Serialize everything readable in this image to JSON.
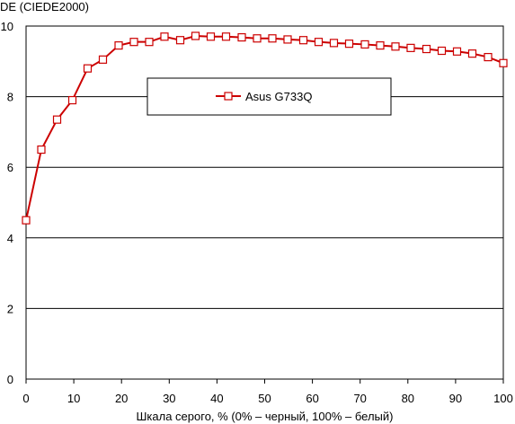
{
  "chart_data": {
    "type": "line",
    "ylabel": "DE (CIEDE2000)",
    "xlabel": "Шкала серого, % (0% – черный, 100% – белый)",
    "xlim": [
      0,
      100
    ],
    "ylim": [
      0,
      10
    ],
    "xticks": [
      0,
      10,
      20,
      30,
      40,
      50,
      60,
      70,
      80,
      90,
      100
    ],
    "yticks": [
      0,
      2,
      4,
      6,
      8,
      10
    ],
    "grid": "horizontal",
    "legend_position": "top-center",
    "series": [
      {
        "name": "Asus G733Q",
        "color": "#cc0000",
        "marker": "square-open",
        "x": [
          0,
          3.2,
          6.5,
          9.7,
          12.9,
          16.1,
          19.4,
          22.6,
          25.8,
          29.0,
          32.3,
          35.5,
          38.7,
          41.9,
          45.2,
          48.4,
          51.6,
          54.8,
          58.1,
          61.3,
          64.5,
          67.7,
          71.0,
          74.2,
          77.4,
          80.6,
          83.9,
          87.1,
          90.3,
          93.5,
          96.8,
          100
        ],
        "values": [
          4.5,
          6.5,
          7.35,
          7.9,
          8.8,
          9.05,
          9.45,
          9.55,
          9.55,
          9.7,
          9.6,
          9.72,
          9.7,
          9.7,
          9.68,
          9.65,
          9.65,
          9.62,
          9.6,
          9.55,
          9.52,
          9.5,
          9.48,
          9.45,
          9.42,
          9.38,
          9.35,
          9.3,
          9.28,
          9.22,
          9.12,
          8.95
        ]
      }
    ]
  }
}
